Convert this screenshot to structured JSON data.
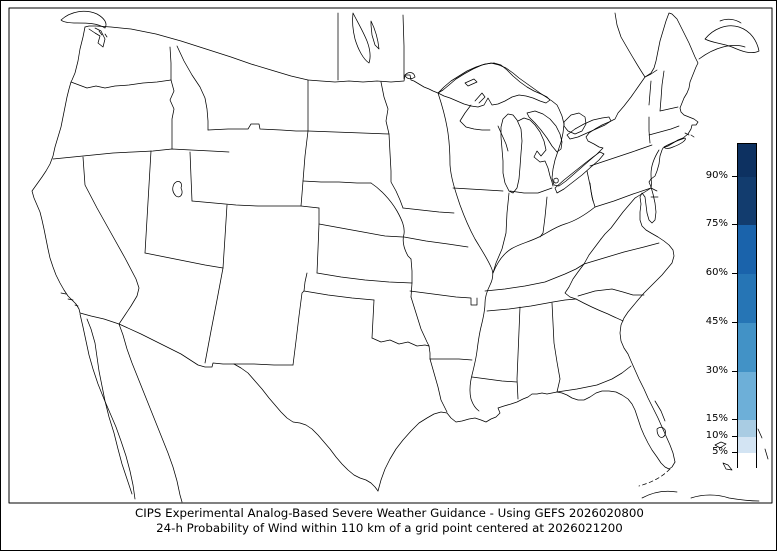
{
  "figure": {
    "title_line1": "CIPS Experimental Analog-Based Severe Weather Guidance - Using GEFS 2026020800",
    "title_line2": "24-h Probability of Wind within 110 km of a grid point centered at 2026021200"
  },
  "colorbar": {
    "unit": "%",
    "scale_min": 0,
    "scale_max": 100,
    "tick_values": [
      90,
      75,
      60,
      45,
      30,
      15,
      10,
      5
    ],
    "tick_labels": [
      "90%",
      "75%",
      "60%",
      "45%",
      "30%",
      "15%",
      "10%",
      "5%"
    ],
    "segments": [
      {
        "from": 0,
        "to": 5,
        "color": "#ffffff"
      },
      {
        "from": 5,
        "to": 10,
        "color": "#d3e4f3"
      },
      {
        "from": 10,
        "to": 15,
        "color": "#a9cce3"
      },
      {
        "from": 15,
        "to": 30,
        "color": "#6dafd8"
      },
      {
        "from": 30,
        "to": 45,
        "color": "#4292c6"
      },
      {
        "from": 45,
        "to": 60,
        "color": "#2675b5"
      },
      {
        "from": 60,
        "to": 75,
        "color": "#1a63ab"
      },
      {
        "from": 75,
        "to": 90,
        "color": "#123c6e"
      },
      {
        "from": 90,
        "to": 100,
        "color": "#0d3161"
      }
    ],
    "border_color": "#000000"
  },
  "map": {
    "region": "CONUS",
    "line_color": "#000000",
    "background": "#ffffff"
  }
}
